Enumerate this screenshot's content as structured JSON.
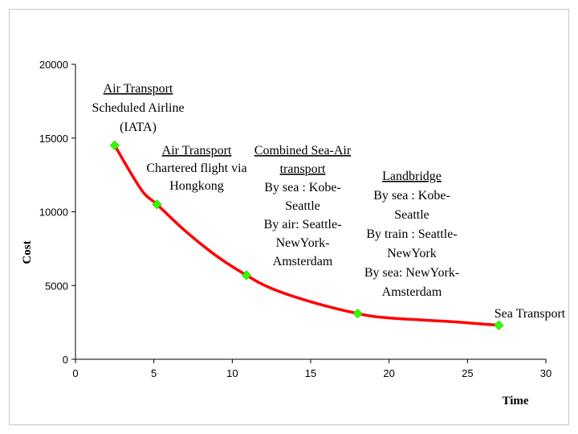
{
  "chart_data": {
    "type": "line",
    "title": "",
    "xlabel": "Time",
    "ylabel": "Cost",
    "xlim": [
      0,
      30
    ],
    "ylim": [
      0,
      20000
    ],
    "x_ticks": [
      "0",
      "5",
      "10",
      "15",
      "20",
      "25",
      "30"
    ],
    "y_ticks": [
      "0",
      "5000",
      "10000",
      "15000",
      "20000"
    ],
    "grid": false,
    "line_color": "#ff0000",
    "marker_color": "#33ff00",
    "curve": [
      {
        "x": 2.5,
        "y": 14500
      },
      {
        "x": 4.2,
        "y": 11500
      },
      {
        "x": 5.2,
        "y": 10500
      },
      {
        "x": 7,
        "y": 8700
      },
      {
        "x": 9,
        "y": 7000
      },
      {
        "x": 10.9,
        "y": 5700
      },
      {
        "x": 12.5,
        "y": 4800
      },
      {
        "x": 15,
        "y": 3900
      },
      {
        "x": 18,
        "y": 3100
      },
      {
        "x": 20,
        "y": 2800
      },
      {
        "x": 24,
        "y": 2550
      },
      {
        "x": 27,
        "y": 2300
      }
    ],
    "points": [
      {
        "x": 2.5,
        "y": 14500,
        "heading": "Air Transport",
        "lines": [
          "Scheduled Airline",
          "(IATA)"
        ]
      },
      {
        "x": 5.2,
        "y": 10500,
        "heading": "Air Transport",
        "lines": [
          "Chartered flight via",
          "Hongkong"
        ]
      },
      {
        "x": 10.9,
        "y": 5700,
        "heading": "Combined Sea-Air",
        "heading2": "transport",
        "lines": [
          "By sea : Kobe-",
          "Seattle",
          "By air: Seattle-",
          "NewYork-",
          "Amsterdam"
        ]
      },
      {
        "x": 18,
        "y": 3100,
        "heading": "Landbridge",
        "lines": [
          "By sea : Kobe-",
          "Seattle",
          "By train : Seattle-",
          "NewYork",
          "By sea: NewYork-",
          "Amsterdam"
        ]
      },
      {
        "x": 27,
        "y": 2300,
        "heading": "",
        "lines": [
          "Sea Transport"
        ]
      }
    ]
  }
}
